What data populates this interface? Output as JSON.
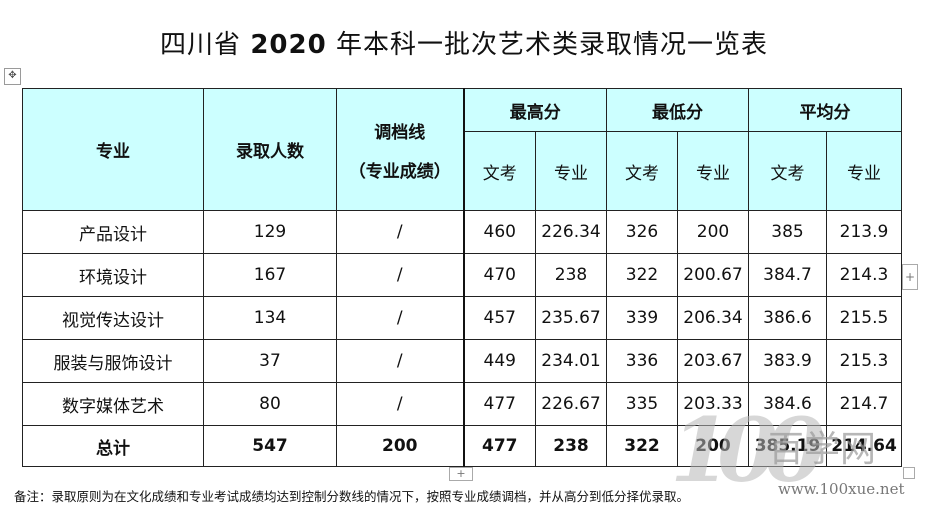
{
  "title": {
    "prefix": "四川省 ",
    "year": "2020",
    "suffix": " 年本科一批次艺术类录取情况一览表"
  },
  "icons": {
    "move_handle": "move-arrows-icon",
    "row_add": "plus-icon",
    "col_add": "plus-icon"
  },
  "table": {
    "header": {
      "major": "专业",
      "admitted": "录取人数",
      "cutoff_line1": "调档线",
      "cutoff_line2": "（专业成绩）",
      "max": "最高分",
      "min": "最低分",
      "avg": "平均分",
      "wenkao": "文考",
      "zhuanye": "专业"
    },
    "rows": [
      {
        "major": "产品设计",
        "count": "129",
        "cutoff": "/",
        "max_wk": "460",
        "max_zy": "226.34",
        "min_wk": "326",
        "min_zy": "200",
        "avg_wk": "385",
        "avg_zy": "213.9"
      },
      {
        "major": "环境设计",
        "count": "167",
        "cutoff": "/",
        "max_wk": "470",
        "max_zy": "238",
        "min_wk": "322",
        "min_zy": "200.67",
        "avg_wk": "384.7",
        "avg_zy": "214.3"
      },
      {
        "major": "视觉传达设计",
        "count": "134",
        "cutoff": "/",
        "max_wk": "457",
        "max_zy": "235.67",
        "min_wk": "339",
        "min_zy": "206.34",
        "avg_wk": "386.6",
        "avg_zy": "215.5"
      },
      {
        "major": "服装与服饰设计",
        "count": "37",
        "cutoff": "/",
        "max_wk": "449",
        "max_zy": "234.01",
        "min_wk": "336",
        "min_zy": "203.67",
        "avg_wk": "383.9",
        "avg_zy": "215.3"
      },
      {
        "major": "数字媒体艺术",
        "count": "80",
        "cutoff": "/",
        "max_wk": "477",
        "max_zy": "226.67",
        "min_wk": "335",
        "min_zy": "203.33",
        "avg_wk": "384.6",
        "avg_zy": "214.7"
      }
    ],
    "total": {
      "major": "总计",
      "count": "547",
      "cutoff": "200",
      "max_wk": "477",
      "max_zy": "238",
      "min_wk": "322",
      "min_zy": "200",
      "avg_wk": "385.19",
      "avg_zy": "214.64"
    }
  },
  "note": "备注：录取原则为在文化成绩和专业考试成绩均达到控制分数线的情况下，按照专业成绩调档，并从高分到低分择优录取。",
  "watermark": {
    "number": "100",
    "text": "百学网",
    "url": "www.100xue.net"
  },
  "colors": {
    "header_bg": "#ccffff"
  }
}
